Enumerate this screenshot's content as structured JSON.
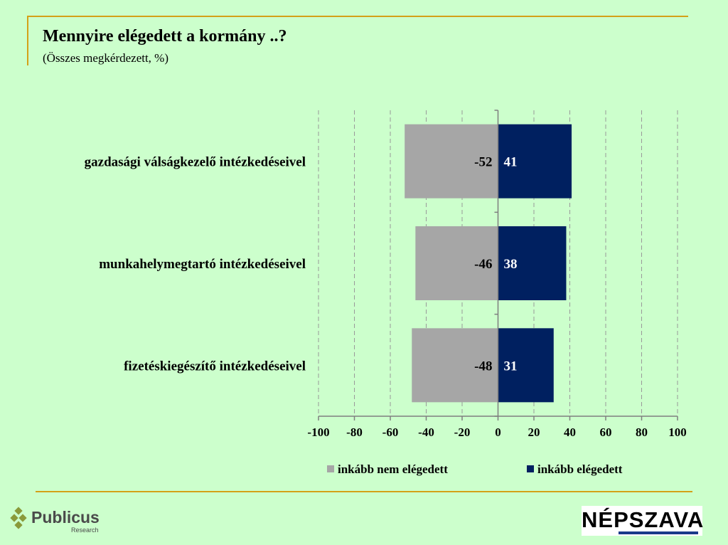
{
  "title": "Mennyire elégedett a kormány ..?",
  "subtitle": "(Összes megkérdezett, %)",
  "colors": {
    "negative": "#a6a6a6",
    "positive": "#002060",
    "background": "#ccffcc",
    "rule": "#d4a017"
  },
  "chart_data": {
    "type": "bar",
    "orientation": "horizontal",
    "stacked": "diverging",
    "categories": [
      "gazdasági válságkezelő intézkedéseivel",
      "munkahelymegtartó intézkedéseivel",
      "fizetéskiegészítő intézkedéseivel"
    ],
    "series": [
      {
        "name": "inkább nem elégedett",
        "values": [
          -52,
          -46,
          -48
        ],
        "labels": [
          "-52",
          "-46",
          "-48"
        ]
      },
      {
        "name": "inkább elégedett",
        "values": [
          41,
          38,
          31
        ],
        "labels": [
          "41",
          "38",
          "31"
        ]
      }
    ],
    "xlim": [
      -100,
      100
    ],
    "xticks": [
      "-100",
      "-80",
      "-60",
      "-40",
      "-20",
      "0",
      "20",
      "40",
      "60",
      "80",
      "100"
    ],
    "grid": "vertical dashed",
    "legend": "bottom"
  },
  "logos": {
    "publicus_name": "Publicus",
    "publicus_sub": "Research",
    "nepszava": "NÉPSZAVA"
  }
}
